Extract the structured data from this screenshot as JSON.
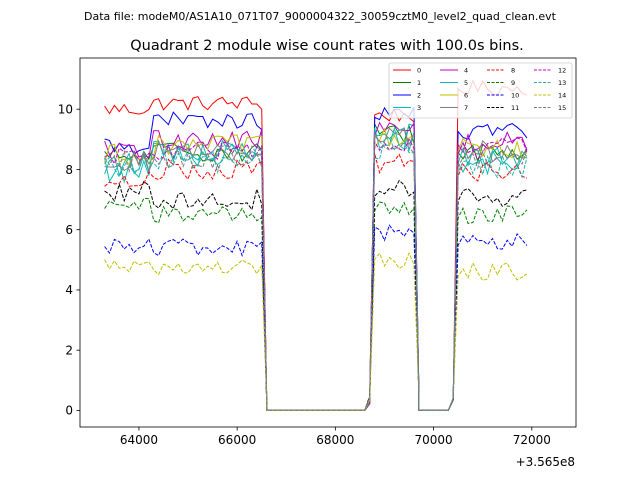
{
  "header": {
    "data_file": "Data file: modeM0/AS1A10_071T07_9000004322_30059cztM0_level2_quad_clean.evt"
  },
  "chart_data": {
    "type": "line",
    "title": "Quadrant 2 module wise count rates with 100.0s bins.",
    "xlabel": "",
    "ylabel": "",
    "x_offset_label": "+3.565e8",
    "xlim": [
      62800,
      72900
    ],
    "ylim": [
      -0.55,
      11.7
    ],
    "xticks": [
      64000,
      66000,
      68000,
      70000,
      72000
    ],
    "xtick_labels": [
      "64000",
      "66000",
      "68000",
      "70000",
      "72000"
    ],
    "yticks": [
      0,
      2,
      4,
      6,
      8,
      10
    ],
    "ytick_labels": [
      "0",
      "2",
      "4",
      "6",
      "8",
      "10"
    ],
    "legend_position": "upper right",
    "x_segments": [
      [
        63300,
        64200
      ],
      [
        64300,
        66600
      ],
      [
        66600,
        68700
      ],
      [
        68700,
        69700
      ],
      [
        69700,
        70300
      ],
      [
        70400,
        71900
      ]
    ],
    "series": [
      {
        "name": "0",
        "color": "#ff0000",
        "dash": "solid",
        "levels": [
          10.0,
          10.2,
          0,
          9.8,
          0,
          10.7
        ],
        "noise": 0.25
      },
      {
        "name": "1",
        "color": "#008000",
        "dash": "solid",
        "levels": [
          8.4,
          8.6,
          0,
          9.2,
          0,
          8.6
        ],
        "noise": 0.35
      },
      {
        "name": "2",
        "color": "#0000ff",
        "dash": "solid",
        "levels": [
          8.8,
          9.6,
          0,
          9.8,
          0,
          9.3
        ],
        "noise": 0.3
      },
      {
        "name": "3",
        "color": "#00bfbf",
        "dash": "solid",
        "levels": [
          8.0,
          8.6,
          0,
          9.1,
          0,
          8.3
        ],
        "noise": 0.45
      },
      {
        "name": "4",
        "color": "#bf00bf",
        "dash": "solid",
        "levels": [
          8.6,
          9.0,
          0,
          9.3,
          0,
          8.9
        ],
        "noise": 0.35
      },
      {
        "name": "5",
        "color": "#20b2aa",
        "dash": "solid",
        "levels": [
          8.2,
          8.5,
          0,
          9.0,
          0,
          8.3
        ],
        "noise": 0.4
      },
      {
        "name": "6",
        "color": "#bfbf00",
        "dash": "solid",
        "levels": [
          8.5,
          8.8,
          0,
          9.0,
          0,
          8.7
        ],
        "noise": 0.35
      },
      {
        "name": "7",
        "color": "#808080",
        "dash": "solid",
        "levels": [
          8.3,
          8.6,
          0,
          9.1,
          0,
          8.6
        ],
        "noise": 0.35
      },
      {
        "name": "8",
        "color": "#ff0000",
        "dash": "dashed",
        "levels": [
          7.6,
          8.0,
          0,
          8.2,
          0,
          7.9
        ],
        "noise": 0.35
      },
      {
        "name": "9",
        "color": "#008000",
        "dash": "dashed",
        "levels": [
          6.8,
          6.5,
          0,
          6.7,
          0,
          6.5
        ],
        "noise": 0.3
      },
      {
        "name": "10",
        "color": "#0000ff",
        "dash": "dashed",
        "levels": [
          5.5,
          5.4,
          0,
          5.9,
          0,
          5.6
        ],
        "noise": 0.3
      },
      {
        "name": "11",
        "color": "#000000",
        "dash": "dashed",
        "levels": [
          7.3,
          7.0,
          0,
          7.3,
          0,
          7.1
        ],
        "noise": 0.35
      },
      {
        "name": "12",
        "color": "#bf00bf",
        "dash": "dashed",
        "levels": [
          8.4,
          8.6,
          0,
          8.8,
          0,
          8.7
        ],
        "noise": 0.35
      },
      {
        "name": "13",
        "color": "#20b2aa",
        "dash": "dashed",
        "levels": [
          8.1,
          8.3,
          0,
          8.7,
          0,
          8.1
        ],
        "noise": 0.4
      },
      {
        "name": "14",
        "color": "#bfbf00",
        "dash": "dashed",
        "levels": [
          4.9,
          4.7,
          0,
          5.0,
          0,
          4.6
        ],
        "noise": 0.3
      },
      {
        "name": "15",
        "color": "#808080",
        "dash": "dashed",
        "levels": [
          8.2,
          8.4,
          0,
          8.8,
          0,
          8.3
        ],
        "noise": 0.4
      }
    ]
  }
}
